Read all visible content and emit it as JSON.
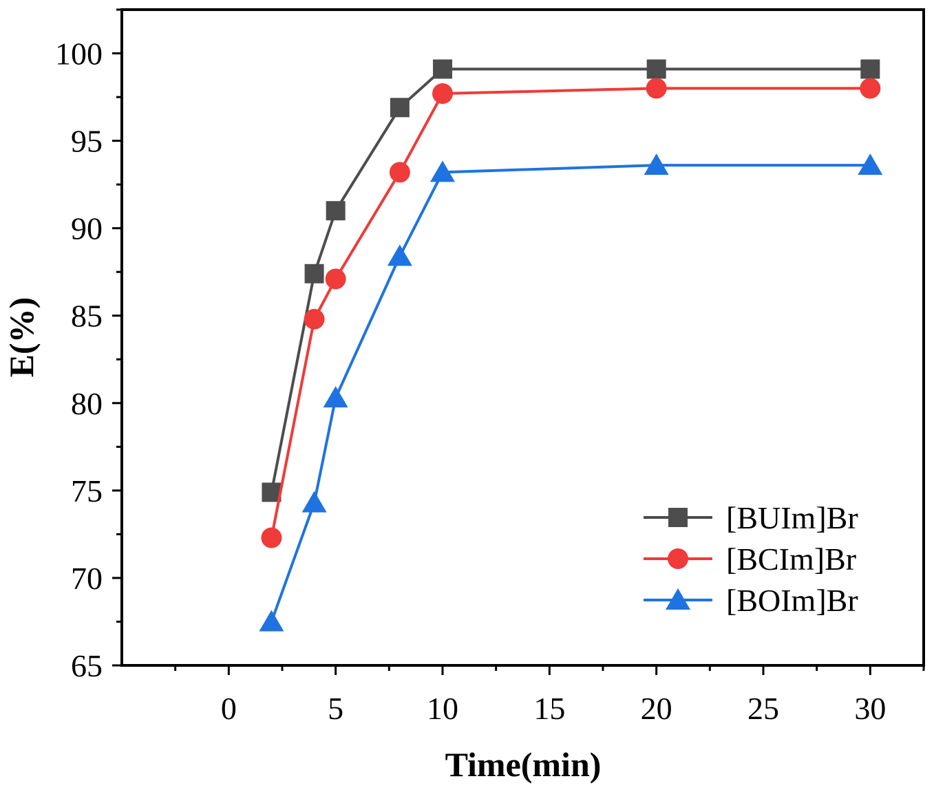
{
  "chart_data": {
    "type": "line",
    "title": "",
    "xlabel": "Time(min)",
    "ylabel": "E(%)",
    "xlim": [
      -5,
      32.5
    ],
    "ylim": [
      65,
      102.5
    ],
    "x_ticks": [
      0,
      5,
      10,
      15,
      20,
      25,
      30
    ],
    "y_ticks": [
      65,
      70,
      75,
      80,
      85,
      90,
      95,
      100
    ],
    "x_tick_labels": [
      "0",
      "5",
      "10",
      "15",
      "20",
      "25",
      "30"
    ],
    "y_tick_labels": [
      "65",
      "70",
      "75",
      "80",
      "85",
      "90",
      "95",
      "100"
    ],
    "x": [
      2,
      4,
      5,
      8,
      10,
      20,
      30
    ],
    "legend_position": "bottom-right",
    "series": [
      {
        "name": "[BUIm]Br",
        "values": [
          74.9,
          87.4,
          91.0,
          96.9,
          99.1,
          99.1,
          99.1
        ],
        "color": "#4d4d4d",
        "marker": "square"
      },
      {
        "name": "[BCIm]Br",
        "values": [
          72.3,
          84.8,
          87.1,
          93.2,
          97.7,
          98.0,
          98.0
        ],
        "color": "#ef3b39",
        "marker": "circle"
      },
      {
        "name": "[BOIm]Br",
        "values": [
          67.5,
          74.3,
          80.3,
          88.4,
          93.2,
          93.6,
          93.6
        ],
        "color": "#1f73e0",
        "marker": "triangle"
      }
    ]
  }
}
